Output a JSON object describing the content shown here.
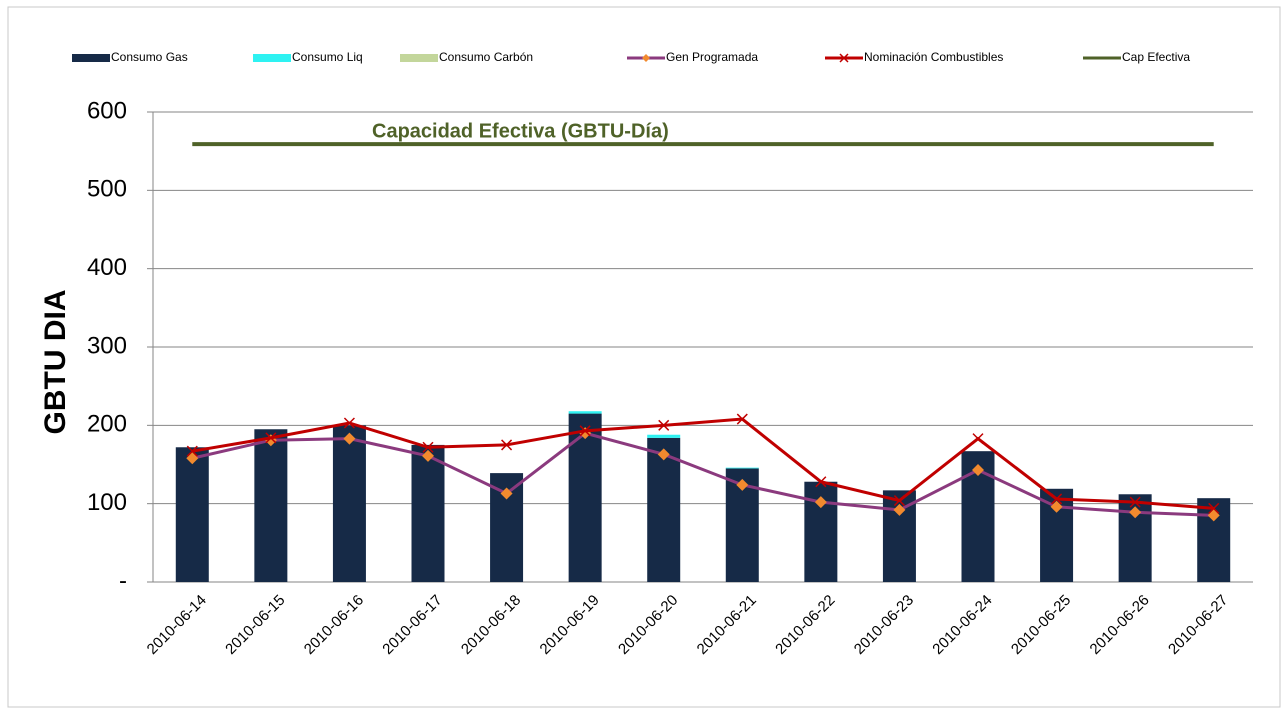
{
  "chart_data": {
    "type": "bar",
    "stacked": true,
    "y_label": "GBTU  DIA",
    "annotation": "Capacidad Efectiva (GBTU-Día)",
    "categories": [
      "2010-06-14",
      "2010-06-15",
      "2010-06-16",
      "2010-06-17",
      "2010-06-18",
      "2010-06-19",
      "2010-06-20",
      "2010-06-21",
      "2010-06-22",
      "2010-06-23",
      "2010-06-24",
      "2010-06-25",
      "2010-06-26",
      "2010-06-27"
    ],
    "series": [
      {
        "name": "Consumo Gas",
        "type": "bar",
        "color": "#162a47",
        "values": [
          172,
          195,
          200,
          175,
          139,
          215,
          184,
          145,
          128,
          117,
          167,
          119,
          112,
          107
        ]
      },
      {
        "name": "Consumo Liq",
        "type": "bar",
        "color": "#2ef2f2",
        "values": [
          0,
          0,
          0,
          0,
          0,
          3,
          4,
          1,
          0,
          0,
          0,
          0,
          0,
          0
        ]
      },
      {
        "name": "Consumo Carbón",
        "type": "bar",
        "color": "#c3d69b",
        "values": [
          0,
          0,
          0,
          0,
          0,
          0,
          0,
          0,
          0,
          0,
          0,
          0,
          0,
          0
        ]
      },
      {
        "name": "Gen Programada",
        "type": "line",
        "color": "#8b3a7e",
        "marker": "diamond",
        "marker_color": "#f28a2e",
        "values": [
          158,
          181,
          183,
          161,
          113,
          190,
          163,
          124,
          102,
          92,
          143,
          96,
          89,
          85
        ]
      },
      {
        "name": "Nominación Combustibles",
        "type": "line",
        "color": "#c00000",
        "marker": "x",
        "marker_color": "#c00000",
        "values": [
          167,
          184,
          203,
          172,
          175,
          193,
          200,
          208,
          128,
          104,
          183,
          106,
          102,
          94
        ]
      },
      {
        "name": "Cap Efectiva",
        "type": "line",
        "color": "#4f6228",
        "marker": "none",
        "values": [
          559,
          559,
          559,
          559,
          559,
          559,
          559,
          559,
          559,
          559,
          559,
          559,
          559,
          559
        ]
      }
    ],
    "ylim": [
      0,
      600
    ],
    "yticks": [
      {
        "value": 0,
        "label": "-"
      },
      100,
      200,
      300,
      400,
      500,
      600
    ],
    "grid": true
  }
}
